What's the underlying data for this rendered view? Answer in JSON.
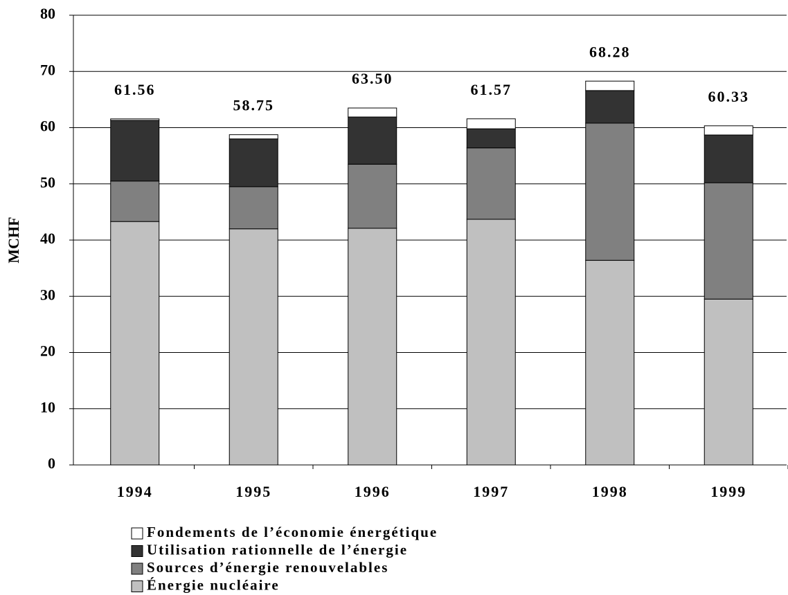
{
  "chart_data": {
    "type": "stacked_bar",
    "y_label": "MCHF",
    "categories": [
      "1994",
      "1995",
      "1996",
      "1997",
      "1998",
      "1999"
    ],
    "series": [
      {
        "name": "Énergie nucléaire",
        "color": "#c0c0c0",
        "values": [
          43.3,
          42.0,
          42.1,
          43.7,
          36.4,
          29.5
        ]
      },
      {
        "name": "Sources d’énergie renouvelables",
        "color": "#808080",
        "values": [
          7.2,
          7.5,
          11.4,
          12.7,
          24.4,
          20.7
        ]
      },
      {
        "name": "Utilisation rationnelle de l’énergie",
        "color": "#333333",
        "values": [
          10.8,
          8.5,
          8.4,
          3.4,
          5.8,
          8.5
        ]
      },
      {
        "name": "Fondements de l’économie énergétique",
        "color": "#ffffff",
        "values": [
          0.26,
          0.75,
          1.6,
          1.77,
          1.68,
          1.63
        ]
      }
    ],
    "totals": [
      61.56,
      58.75,
      63.5,
      61.57,
      68.28,
      60.33
    ],
    "total_labels": [
      "61.56",
      "58.75",
      "63.50",
      "61.57",
      "68.28",
      "60.33"
    ],
    "ylim": [
      0,
      80
    ],
    "yticks": [
      0,
      10,
      20,
      30,
      40,
      50,
      60,
      70,
      80
    ],
    "grid": true
  }
}
